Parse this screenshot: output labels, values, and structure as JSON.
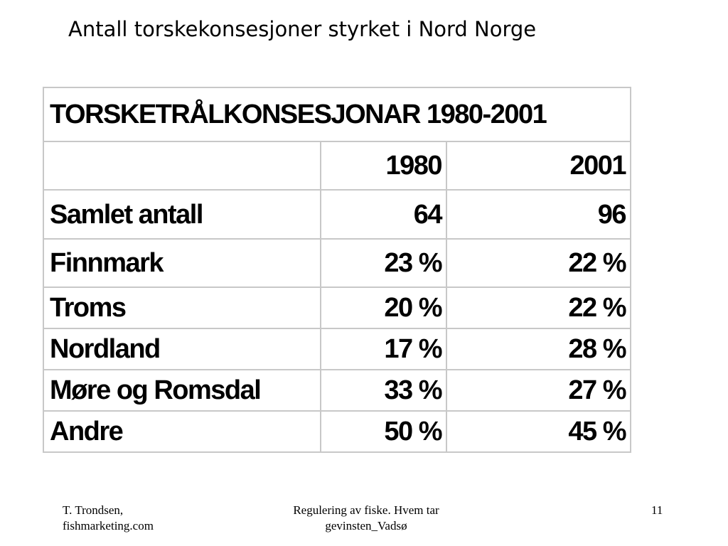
{
  "slide": {
    "title": "Antall torskekonsesjoner styrket i Nord Norge"
  },
  "table": {
    "title": "TORSKETRÅLKONSESJONAR 1980-2001",
    "header": [
      "",
      "1980",
      "2001"
    ],
    "rows": [
      [
        "Samlet antall",
        "64",
        "96"
      ],
      [
        "Finnmark",
        "23 %",
        "22 %"
      ],
      [
        "Troms",
        "20 %",
        "22 %"
      ],
      [
        "Nordland",
        "17 %",
        "28 %"
      ],
      [
        "Møre og Romsdal",
        "33 %",
        "27 %"
      ],
      [
        "Andre",
        "50 %",
        "45 %"
      ]
    ]
  },
  "footer": {
    "left_line1": "T. Trondsen,",
    "left_line2": "fishmarketing.com",
    "center_line1": "Regulering av fiske. Hvem tar",
    "center_line2": "gevinsten_Vadsø",
    "page_number": "11"
  }
}
